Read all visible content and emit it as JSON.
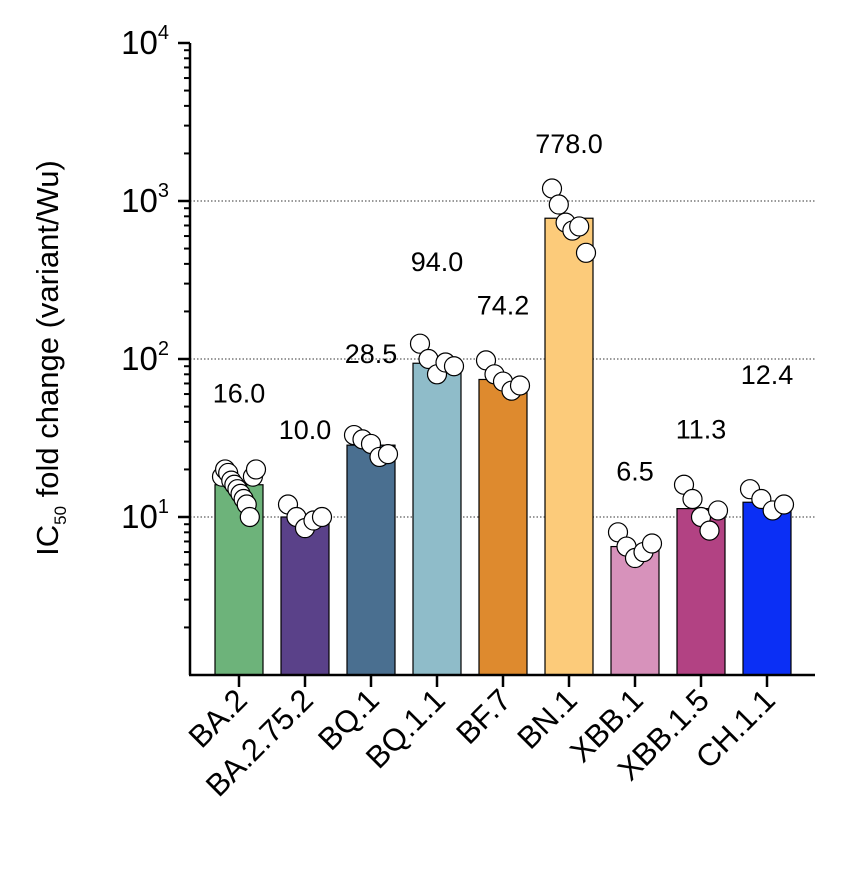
{
  "chart_data": {
    "type": "bar",
    "ylabel_main": "IC",
    "ylabel_sub": "50",
    "ylabel_rest": " fold change (variant/Wu)",
    "yscale": "log",
    "ylim": [
      1,
      10000
    ],
    "yticks": [
      {
        "value": 10,
        "base": "10",
        "exp": "1"
      },
      {
        "value": 100,
        "base": "10",
        "exp": "2"
      },
      {
        "value": 1000,
        "base": "10",
        "exp": "3"
      },
      {
        "value": 10000,
        "base": "10",
        "exp": "4"
      }
    ],
    "grid": "horizontal dotted at 10, 100, 1000",
    "categories": [
      "BA.2",
      "BA.2.75.2",
      "BQ.1",
      "BQ.1.1",
      "BF.7",
      "BN.1",
      "XBB.1",
      "XBB.1.5",
      "CH.1.1"
    ],
    "values": [
      16.0,
      10.0,
      28.5,
      94.0,
      74.2,
      778.0,
      6.5,
      11.3,
      12.4
    ],
    "value_labels": [
      "16.0",
      "10.0",
      "28.5",
      "94.0",
      "74.2",
      "778.0",
      "6.5",
      "11.3",
      "12.4"
    ],
    "colors": [
      "#6db37a",
      "#5a4189",
      "#4a6f90",
      "#8fbcc9",
      "#de8a2e",
      "#fccb7a",
      "#d792bb",
      "#b24283",
      "#0b2ff5"
    ],
    "points": [
      [
        18,
        20,
        19,
        17,
        16,
        15,
        14,
        13,
        12,
        10,
        18,
        20
      ],
      [
        12,
        10,
        8.5,
        9.5,
        10
      ],
      [
        33,
        31,
        29,
        24,
        25
      ],
      [
        125,
        100,
        80,
        95,
        90
      ],
      [
        98,
        80,
        72,
        63,
        68
      ],
      [
        1200,
        950,
        730,
        650,
        690,
        470
      ],
      [
        8,
        6.5,
        5.5,
        6,
        6.8
      ],
      [
        16,
        13,
        10,
        8.2,
        11
      ],
      [
        15,
        13,
        11,
        12
      ]
    ]
  }
}
